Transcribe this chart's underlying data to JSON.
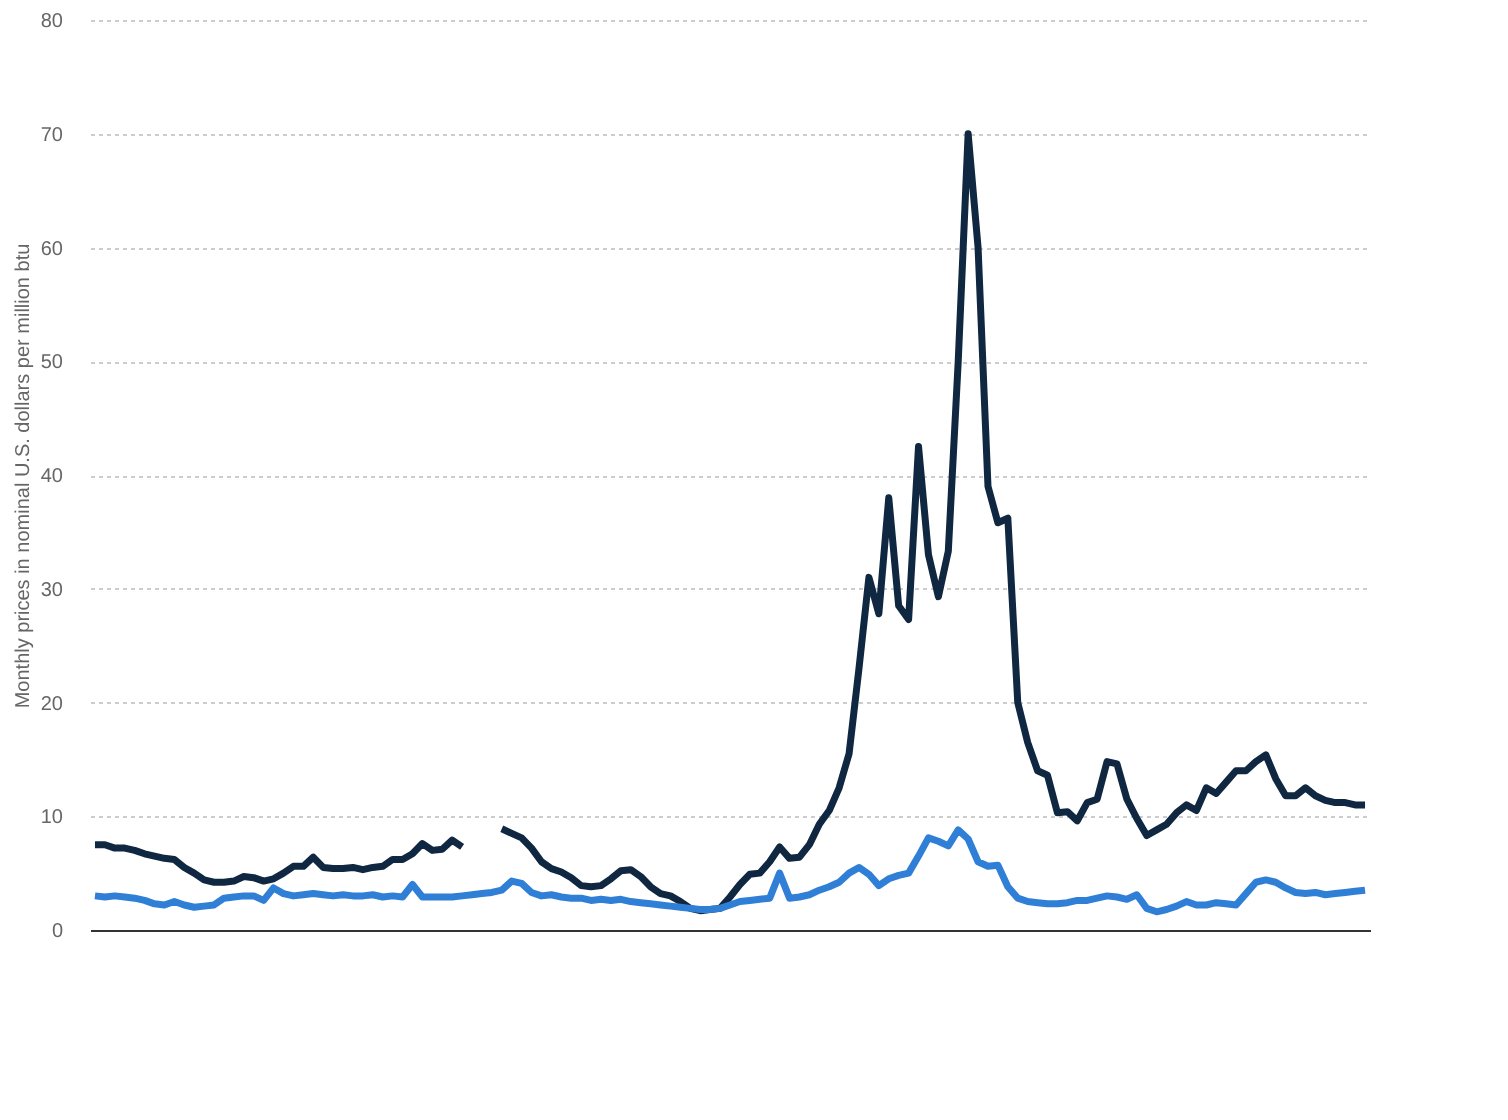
{
  "chart_data": {
    "type": "line",
    "ylabel": "Monthly prices in nominal U.S. dollars per million btu",
    "categories": [
      null,
      null,
      null,
      null,
      null,
      null,
      null,
      null,
      null,
      null,
      null,
      null,
      null,
      null,
      null,
      null,
      null,
      null,
      null,
      null,
      null,
      null,
      null,
      null,
      null,
      null,
      null,
      null,
      null,
      null,
      null,
      null,
      null,
      null,
      null,
      null,
      null,
      null,
      null,
      null,
      null,
      null,
      null,
      null,
      null,
      null,
      null,
      null,
      null,
      null,
      null,
      null,
      null,
      null,
      null,
      null,
      null,
      null,
      null,
      null,
      null,
      null,
      null,
      null,
      null,
      null,
      null,
      null,
      null,
      null,
      null,
      null,
      null,
      null,
      null,
      null,
      null,
      null,
      null,
      null,
      null,
      null,
      null,
      null,
      null,
      null,
      null,
      null,
      null,
      null,
      null,
      null,
      null,
      null,
      null,
      null,
      null,
      null,
      null,
      null,
      null,
      null,
      null,
      null,
      null,
      null,
      null,
      null,
      null,
      null,
      null,
      null,
      null,
      null,
      null,
      null,
      null,
      null,
      null,
      null,
      null,
      null,
      null,
      null,
      null,
      null,
      null,
      null,
      null
    ],
    "series": [
      {
        "color": "#0f2740",
        "values": [
          7.5,
          7.5,
          7.2,
          7.2,
          7.0,
          6.7,
          6.5,
          6.3,
          6.2,
          5.5,
          5.0,
          4.4,
          4.2,
          4.2,
          4.3,
          4.7,
          4.6,
          4.3,
          4.5,
          5.0,
          5.6,
          5.6,
          6.4,
          5.5,
          5.4,
          5.4,
          5.5,
          5.3,
          5.5,
          5.6,
          6.2,
          6.2,
          6.7,
          7.6,
          7.0,
          7.1,
          7.9,
          7.3,
          null,
          null,
          null,
          8.9,
          8.5,
          8.1,
          7.2,
          6.0,
          5.4,
          5.1,
          4.6,
          3.9,
          3.8,
          3.9,
          4.5,
          5.2,
          5.3,
          4.7,
          3.8,
          3.2,
          3.0,
          2.5,
          1.9,
          1.7,
          1.8,
          1.9,
          2.9,
          4.0,
          4.9,
          5.0,
          6.0,
          7.3,
          6.3,
          6.4,
          7.5,
          9.3,
          10.5,
          12.5,
          15.5,
          23,
          31,
          27.8,
          38,
          28.5,
          27.3,
          42.5,
          33,
          29.3,
          33.3,
          50,
          70,
          60,
          39,
          35.8,
          36.2,
          20,
          16.5,
          14,
          13.6,
          10.3,
          10.4,
          9.6,
          11.2,
          11.5,
          14.8,
          14.6,
          11.5,
          9.8,
          8.3,
          8.8,
          9.3,
          10.3,
          11.0,
          10.5,
          12.5,
          12.0,
          13.0,
          14.0,
          14.0,
          14.8,
          15.4,
          13.3,
          11.8,
          11.8,
          12.5,
          11.8,
          11.4,
          11.2,
          11.2,
          11.0,
          11.0
        ]
      },
      {
        "color": "#2f7fd6",
        "values": [
          3.0,
          2.9,
          3.0,
          2.9,
          2.8,
          2.6,
          2.3,
          2.2,
          2.5,
          2.2,
          2.0,
          2.1,
          2.2,
          2.8,
          2.9,
          3.0,
          3.0,
          2.6,
          3.7,
          3.2,
          3.0,
          3.1,
          3.2,
          3.1,
          3.0,
          3.1,
          3.0,
          3.0,
          3.1,
          2.9,
          3.0,
          2.9,
          4.0,
          2.9,
          2.9,
          2.9,
          2.9,
          3.0,
          3.1,
          3.2,
          3.3,
          3.5,
          4.3,
          4.1,
          3.3,
          3.0,
          3.1,
          2.9,
          2.8,
          2.8,
          2.6,
          2.7,
          2.6,
          2.7,
          2.5,
          2.4,
          2.3,
          2.2,
          2.1,
          2.0,
          1.9,
          1.8,
          1.8,
          1.9,
          2.2,
          2.5,
          2.6,
          2.7,
          2.8,
          5.0,
          2.8,
          2.9,
          3.1,
          3.5,
          3.8,
          4.2,
          5.0,
          5.5,
          4.9,
          3.9,
          4.5,
          4.8,
          5.0,
          6.5,
          8.1,
          7.8,
          7.4,
          8.8,
          8.0,
          6.0,
          5.6,
          5.7,
          3.8,
          2.8,
          2.5,
          2.4,
          2.3,
          2.3,
          2.4,
          2.6,
          2.6,
          2.8,
          3.0,
          2.9,
          2.7,
          3.1,
          1.9,
          1.6,
          1.8,
          2.1,
          2.5,
          2.2,
          2.2,
          2.4,
          2.3,
          2.2,
          3.2,
          4.2,
          4.4,
          4.2,
          3.7,
          3.3,
          3.2,
          3.3,
          3.1,
          3.2,
          3.3,
          3.4,
          3.5
        ]
      }
    ],
    "ylim": [
      0,
      80
    ],
    "yticks": [
      0,
      10,
      20,
      30,
      40,
      50,
      60,
      70,
      80
    ],
    "grid": "y",
    "tick_labels": "y",
    "line_style": "solid",
    "marker": "none"
  }
}
